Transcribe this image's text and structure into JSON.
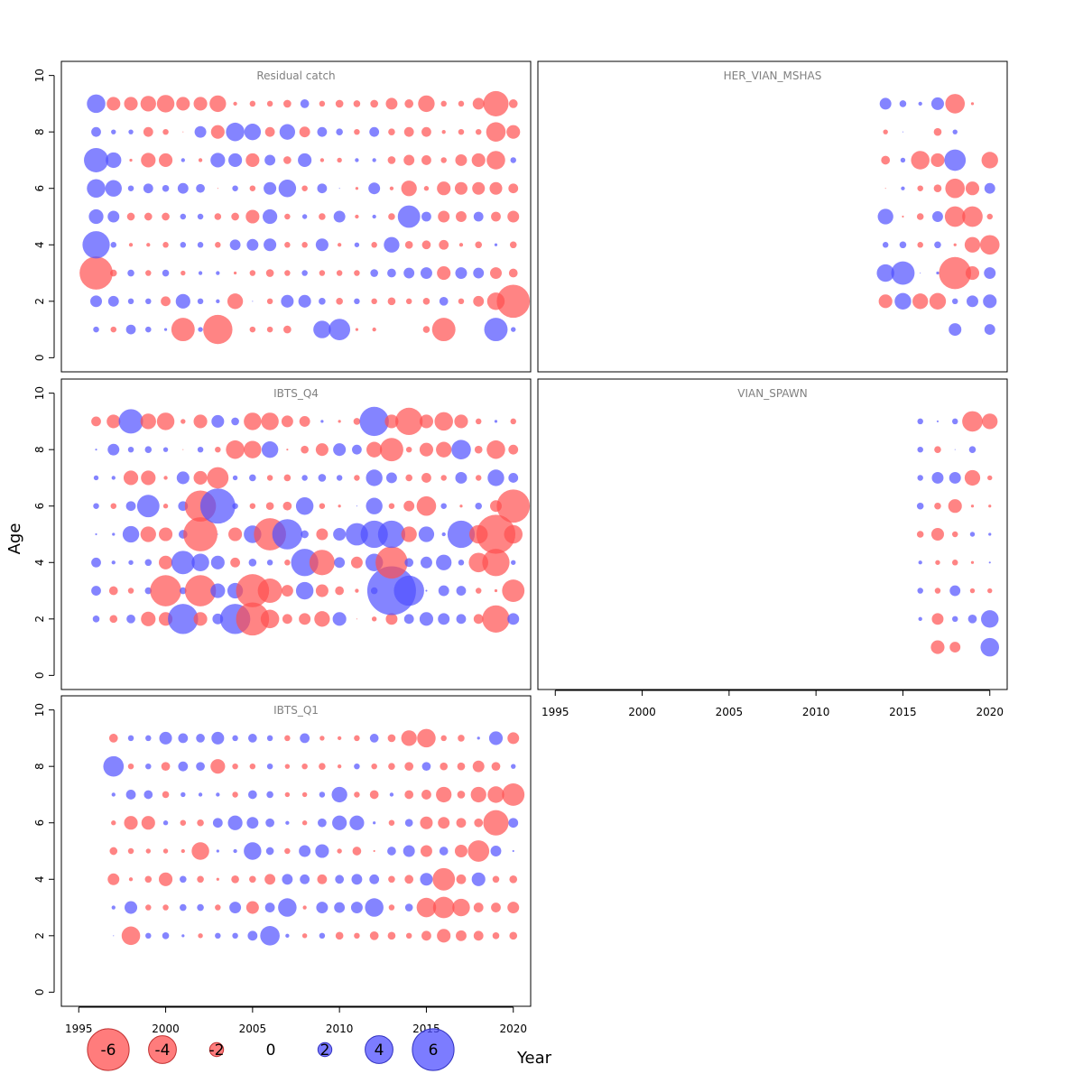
{
  "chart_data": {
    "type": "scatter",
    "kind": "bubble-residuals",
    "xlabel": "Year",
    "ylabel": "Age",
    "xlim": [
      1994,
      2021
    ],
    "ylim": [
      -0.5,
      10.5
    ],
    "x_ticks": [
      1995,
      2000,
      2005,
      2010,
      2015,
      2020
    ],
    "y_ticks": [
      0,
      2,
      4,
      6,
      8,
      10
    ],
    "colors": {
      "positive": "#5050ff",
      "negative": "#ff5050"
    },
    "legend": {
      "placement": "bottom",
      "values": [
        -6,
        -4,
        -2,
        0,
        2,
        4,
        6
      ]
    },
    "panels": [
      {
        "title": "Residual catch",
        "years": [
          1996,
          1997,
          1998,
          1999,
          2000,
          2001,
          2002,
          2003,
          2004,
          2005,
          2006,
          2007,
          2008,
          2009,
          2010,
          2011,
          2012,
          2013,
          2014,
          2015,
          2016,
          2017,
          2018,
          2019,
          2020
        ],
        "ages": [
          1,
          2,
          3,
          4,
          5,
          6,
          7,
          8,
          9
        ],
        "values": [
          [
            0.6,
            -0.6,
            1.0,
            0.6,
            0.3,
            -2.4,
            0.5,
            -3.0,
            0,
            -0.6,
            -0.6,
            -0.8,
            0,
            1.8,
            2.2,
            -0.3,
            -0.4,
            0,
            0,
            -0.7,
            -2.4,
            0,
            0,
            2.4,
            0.5
          ],
          [
            1.2,
            1.1,
            0.6,
            0.6,
            -1.0,
            1.5,
            0.6,
            0.4,
            -1.6,
            0.1,
            -0.6,
            1.3,
            1.3,
            0.7,
            -0.7,
            0.6,
            -0.6,
            -0.8,
            -0.6,
            -0.7,
            0.9,
            -0.6,
            -1.1,
            -1.8,
            -3.4
          ],
          [
            -3.4,
            -0.7,
            0.7,
            -0.6,
            0.7,
            -0.5,
            0.4,
            0.4,
            -0.3,
            -0.6,
            -0.8,
            -0.6,
            0.6,
            -0.6,
            -0.6,
            -0.6,
            0.8,
            0.9,
            1.1,
            1.2,
            -1.4,
            1.2,
            1.1,
            -1.2,
            -0.9
          ],
          [
            2.8,
            0.6,
            -0.4,
            -0.4,
            -0.6,
            0.6,
            0.6,
            -0.6,
            1.1,
            1.2,
            1.3,
            -0.6,
            -0.6,
            1.3,
            -0.4,
            0.5,
            -0.6,
            1.6,
            -0.8,
            -0.9,
            -1.0,
            -0.4,
            -0.7,
            0.3,
            -0.7
          ],
          [
            1.5,
            1.2,
            -0.8,
            -0.8,
            -0.8,
            0.6,
            0.6,
            -0.7,
            -0.8,
            -1.4,
            1.5,
            -0.6,
            0.5,
            -0.7,
            1.2,
            -0.4,
            0.4,
            -0.7,
            2.3,
            1.0,
            -1.2,
            -1.1,
            1.0,
            -1.0,
            -1.2
          ],
          [
            1.9,
            1.7,
            0.6,
            1.0,
            0.7,
            1.1,
            0.9,
            -0.1,
            0.6,
            -0.6,
            1.3,
            1.8,
            -0.6,
            1.0,
            0.1,
            -0.3,
            1.2,
            -0.4,
            -1.6,
            -0.5,
            -1.4,
            -1.3,
            -1.3,
            -1.3,
            -1.0
          ],
          [
            2.5,
            1.6,
            -0.3,
            -1.5,
            -1.4,
            0.4,
            -0.4,
            1.5,
            1.4,
            -1.4,
            1.1,
            -0.8,
            1.4,
            -0.4,
            -0.5,
            0.4,
            0.4,
            -0.8,
            -1.1,
            -1.0,
            -0.6,
            -1.2,
            -1.4,
            -1.9,
            0.6
          ],
          [
            1.0,
            0.5,
            0.5,
            -1.0,
            -0.6,
            -0.1,
            1.2,
            -1.4,
            1.9,
            1.7,
            -1.0,
            1.6,
            -1.1,
            1.0,
            0.7,
            -0.6,
            1.0,
            -0.7,
            -1.0,
            -1.0,
            -0.4,
            -0.6,
            -0.6,
            -2.0,
            -1.4
          ],
          [
            1.9,
            -1.4,
            -1.4,
            -1.6,
            -1.8,
            -1.4,
            -1.4,
            -1.7,
            -0.4,
            -0.6,
            -0.6,
            -0.8,
            0.9,
            -0.6,
            -0.8,
            -0.7,
            -0.8,
            -1.2,
            -0.9,
            -1.7,
            -0.6,
            -0.6,
            -1.2,
            -2.6,
            -0.9
          ]
        ]
      },
      {
        "title": "HER_VIAN_MSHAS",
        "years": [
          2014,
          2015,
          2016,
          2017,
          2018,
          2019,
          2020
        ],
        "ages": [
          1,
          2,
          3,
          4,
          5,
          6,
          7,
          8,
          9
        ],
        "values": [
          [
            null,
            null,
            null,
            null,
            1.3,
            null,
            1.1
          ],
          [
            -1.4,
            1.7,
            -1.6,
            -1.7,
            0.6,
            1.2,
            1.4
          ],
          [
            1.8,
            2.4,
            0.1,
            0.3,
            -3.3,
            -1.4,
            1.2
          ],
          [
            0.6,
            0.7,
            -0.6,
            0.7,
            -0.3,
            -1.6,
            -2.0
          ],
          [
            1.6,
            -0.2,
            -0.7,
            1.1,
            -2.1,
            -2.1,
            -0.6
          ],
          [
            -0.1,
            0.4,
            -0.6,
            -0.8,
            -2.0,
            -1.4,
            1.1
          ],
          [
            -0.9,
            0.5,
            -1.9,
            -1.4,
            2.2,
            null,
            -1.7
          ],
          [
            -0.5,
            0.1,
            null,
            -0.8,
            0.5,
            null,
            null
          ],
          [
            1.2,
            0.7,
            0.4,
            1.3,
            -2.0,
            -0.3,
            null
          ]
        ]
      },
      {
        "title": "IBTS_Q4",
        "years": [
          1996,
          1997,
          1998,
          1999,
          2000,
          2001,
          2002,
          2003,
          2004,
          2005,
          2006,
          2007,
          2008,
          2009,
          2010,
          2011,
          2012,
          2013,
          2014,
          2015,
          2016,
          2017,
          2018,
          2019,
          2020
        ],
        "ages": [
          2,
          3,
          4,
          5,
          6,
          7,
          8,
          9
        ],
        "values": [
          [
            0.7,
            -0.8,
            0.9,
            -1.5,
            -1.4,
            3.1,
            -1.4,
            1.1,
            3.1,
            -3.4,
            -1.9,
            -1.0,
            -1.2,
            -1.6,
            1.4,
            -0.1,
            -0.5,
            -1.2,
            1.0,
            1.4,
            1.2,
            1.0,
            -1.0,
            -2.8,
            1.2
          ],
          [
            1.0,
            -0.9,
            -0.6,
            0.7,
            -3.2,
            0.7,
            -3.2,
            1.5,
            1.6,
            -3.4,
            -2.5,
            -1.2,
            1.8,
            -1.3,
            -0.9,
            -0.4,
            0.7,
            5.0,
            3.1,
            0.2,
            1.1,
            1.0,
            -0.6,
            -0.3,
            -2.3
          ],
          [
            1.0,
            0.4,
            0.5,
            0.7,
            -1.4,
            2.4,
            1.8,
            1.4,
            -1.0,
            0.8,
            0.6,
            -0.6,
            2.8,
            -2.6,
            1.1,
            -1.2,
            1.8,
            -3.3,
            0.9,
            1.2,
            1.6,
            0.6,
            -2.0,
            -2.8,
            0.5
          ],
          [
            0.2,
            0.3,
            1.7,
            -1.6,
            -1.4,
            0.9,
            -3.5,
            0.1,
            -1.4,
            1.8,
            -3.3,
            3.1,
            0.8,
            -1.2,
            1.3,
            2.3,
            2.8,
            2.8,
            -1.6,
            1.6,
            0.4,
            2.8,
            -1.9,
            -4.0,
            -1.9
          ],
          [
            0.6,
            -0.6,
            1.0,
            2.3,
            -0.5,
            1.0,
            -3.2,
            3.6,
            0.6,
            -0.6,
            -0.8,
            -0.9,
            1.8,
            -0.6,
            -0.3,
            0.1,
            1.7,
            -0.6,
            -1.1,
            -2.0,
            0.6,
            -0.3,
            0.7,
            -1.2,
            -3.4
          ],
          [
            0.5,
            0.4,
            -1.5,
            -1.5,
            -0.4,
            1.3,
            -1.4,
            -2.2,
            0.5,
            0.7,
            -0.6,
            -0.7,
            0.6,
            0.8,
            0.6,
            -0.6,
            1.7,
            1.1,
            -0.7,
            -1.0,
            -0.6,
            1.2,
            -0.6,
            1.7,
            1.0
          ],
          [
            0.2,
            1.2,
            0.6,
            0.7,
            0.5,
            -0.1,
            0.6,
            -0.6,
            -1.9,
            -1.8,
            1.7,
            -0.2,
            -0.8,
            -1.3,
            1.3,
            1.0,
            -1.6,
            -2.4,
            -0.6,
            -1.4,
            -1.6,
            2.0,
            -0.8,
            -1.9,
            -1.0
          ],
          [
            -1.0,
            -1.4,
            2.5,
            -1.6,
            -1.8,
            -0.5,
            -1.4,
            1.3,
            0.8,
            -1.8,
            -1.8,
            -1.2,
            -1.1,
            0.3,
            -0.3,
            -0.7,
            3.0,
            -1.4,
            -2.8,
            -1.4,
            -1.9,
            -1.4,
            -0.6,
            0.3,
            -0.6
          ]
        ]
      },
      {
        "title": "VIAN_SPAWN",
        "years": [
          2016,
          2017,
          2018,
          2019,
          2020
        ],
        "ages": [
          1,
          2,
          3,
          4,
          5,
          6,
          7,
          8,
          9
        ],
        "values": [
          [
            null,
            -1.4,
            -1.1,
            null,
            1.9
          ],
          [
            0.4,
            -1.2,
            0.6,
            0.9,
            1.8
          ],
          [
            0.6,
            -0.6,
            1.1,
            -0.5,
            -0.5
          ],
          [
            0.4,
            -0.5,
            -0.6,
            -0.3,
            0.2
          ],
          [
            -0.7,
            -1.3,
            -0.6,
            0.5,
            0.3
          ],
          [
            0.7,
            -0.7,
            -1.4,
            -0.3,
            -0.3
          ],
          [
            0.6,
            1.2,
            1.2,
            -1.6,
            -0.5
          ],
          [
            0.6,
            -0.7,
            0.1,
            0.7,
            null
          ],
          [
            0.6,
            0.2,
            0.6,
            -2.1,
            -1.6
          ]
        ]
      },
      {
        "title": "IBTS_Q1",
        "years": [
          1996,
          1997,
          1998,
          1999,
          2000,
          2001,
          2002,
          2003,
          2004,
          2005,
          2006,
          2007,
          2008,
          2009,
          2010,
          2011,
          2012,
          2013,
          2014,
          2015,
          2016,
          2017,
          2018,
          2019,
          2020
        ],
        "ages": [
          2,
          3,
          4,
          5,
          6,
          7,
          8,
          9
        ],
        "values": [
          [
            null,
            0.1,
            -1.9,
            0.6,
            0.7,
            0.3,
            -0.5,
            0.6,
            0.6,
            1.0,
            2.0,
            0.4,
            -0.5,
            0.6,
            -0.8,
            -0.6,
            -0.9,
            -0.8,
            -0.6,
            -1.0,
            -1.4,
            -1.1,
            -1.0,
            -0.7,
            -0.8
          ],
          [
            null,
            0.4,
            1.3,
            -0.6,
            -0.6,
            0.7,
            0.7,
            -0.6,
            1.2,
            -1.3,
            1.0,
            1.9,
            -0.4,
            1.2,
            1.1,
            1.2,
            1.9,
            -0.6,
            0.8,
            -2.0,
            -2.2,
            -1.8,
            -1.0,
            -1.0,
            -1.2
          ],
          [
            null,
            -1.2,
            -0.4,
            -0.7,
            -1.4,
            0.7,
            -0.7,
            -0.3,
            -0.8,
            -0.7,
            -1.1,
            1.1,
            1.0,
            -1.0,
            0.9,
            1.1,
            1.0,
            -0.7,
            -0.9,
            1.3,
            -2.3,
            -1.0,
            1.4,
            -0.7,
            -0.8
          ],
          [
            null,
            -0.8,
            -0.6,
            -0.5,
            -0.5,
            -0.4,
            -1.8,
            0.3,
            0.4,
            1.8,
            0.8,
            -0.6,
            1.2,
            1.4,
            -0.5,
            -0.9,
            -0.2,
            0.9,
            1.2,
            -1.2,
            0.9,
            -1.3,
            -2.2,
            1.1,
            0.2
          ],
          [
            null,
            -0.5,
            -1.4,
            -1.4,
            0.5,
            -0.6,
            -0.7,
            1.0,
            1.5,
            1.2,
            0.9,
            0.4,
            -0.5,
            0.9,
            1.5,
            1.5,
            0.3,
            -0.6,
            0.8,
            -1.3,
            -1.2,
            -1.0,
            -0.9,
            -2.6,
            1.0
          ],
          [
            null,
            0.4,
            1.0,
            0.9,
            -0.7,
            0.5,
            0.4,
            0.4,
            -0.6,
            0.9,
            0.7,
            -0.5,
            -0.5,
            0.6,
            1.6,
            -0.6,
            -0.9,
            0.4,
            -0.9,
            -1.0,
            -1.6,
            -0.8,
            -1.6,
            -1.7,
            -2.3
          ],
          [
            null,
            2.1,
            -0.6,
            0.6,
            -0.9,
            1.0,
            0.9,
            -1.5,
            -0.6,
            -0.6,
            0.6,
            -0.5,
            -0.6,
            -0.7,
            -0.4,
            0.6,
            -0.6,
            -0.7,
            -0.9,
            0.9,
            -0.8,
            -0.8,
            -1.2,
            -0.9,
            0.5
          ],
          [
            null,
            -0.9,
            0.6,
            0.6,
            1.3,
            1.0,
            0.9,
            1.3,
            0.6,
            0.9,
            0.6,
            -0.6,
            1.0,
            -0.5,
            -0.4,
            -0.6,
            0.9,
            -0.8,
            -1.6,
            -1.9,
            -0.6,
            -0.7,
            0.3,
            1.4,
            -1.2
          ]
        ]
      }
    ]
  }
}
